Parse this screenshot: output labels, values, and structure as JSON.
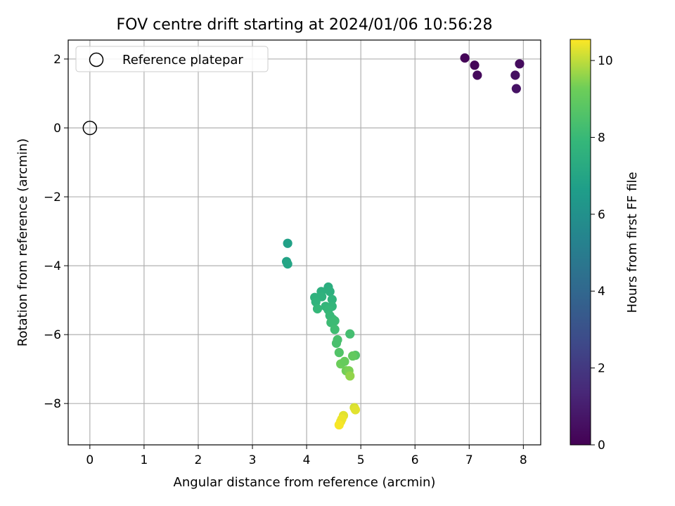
{
  "chart_data": {
    "type": "scatter",
    "title": "FOV centre drift starting at 2024/01/06 10:56:28",
    "xlabel": "Angular distance from reference (arcmin)",
    "ylabel": "Rotation from reference (arcmin)",
    "xlim": [
      -0.4,
      8.32
    ],
    "ylim": [
      -9.2,
      2.55
    ],
    "x_ticks": [
      0,
      1,
      2,
      3,
      4,
      5,
      6,
      7,
      8
    ],
    "y_ticks": [
      2,
      0,
      -2,
      -4,
      -6,
      -8
    ],
    "x_tick_labels": [
      "0",
      "1",
      "2",
      "3",
      "4",
      "5",
      "6",
      "7",
      "8"
    ],
    "y_tick_labels": [
      "2",
      "0",
      "−2",
      "−4",
      "−6",
      "−8"
    ],
    "grid": true,
    "legend": {
      "placement": "top-left",
      "entries": [
        {
          "label": "Reference platepar",
          "marker": "open-circle"
        }
      ]
    },
    "reference_point": {
      "x": 0,
      "y": 0
    },
    "colorbar": {
      "label": "Hours from first FF file",
      "range": [
        0,
        10.55
      ],
      "ticks": [
        0,
        2,
        4,
        6,
        8,
        10
      ],
      "tick_labels": [
        "0",
        "2",
        "4",
        "6",
        "8",
        "10"
      ],
      "colormap": "viridis"
    },
    "points": [
      {
        "x": 6.92,
        "y": 2.03,
        "c": 0.1
      },
      {
        "x": 7.1,
        "y": 1.82,
        "c": 0.2
      },
      {
        "x": 7.15,
        "y": 1.53,
        "c": 0.3
      },
      {
        "x": 7.93,
        "y": 1.86,
        "c": 0.4
      },
      {
        "x": 7.85,
        "y": 1.53,
        "c": 0.5
      },
      {
        "x": 7.87,
        "y": 1.14,
        "c": 0.6
      },
      {
        "x": 3.65,
        "y": -3.35,
        "c": 6.8
      },
      {
        "x": 3.63,
        "y": -3.88,
        "c": 6.9
      },
      {
        "x": 3.65,
        "y": -3.95,
        "c": 7.0
      },
      {
        "x": 4.4,
        "y": -4.62,
        "c": 7.4
      },
      {
        "x": 4.27,
        "y": -4.75,
        "c": 7.5
      },
      {
        "x": 4.43,
        "y": -4.75,
        "c": 7.5
      },
      {
        "x": 4.15,
        "y": -4.92,
        "c": 7.6
      },
      {
        "x": 4.28,
        "y": -4.9,
        "c": 7.6
      },
      {
        "x": 4.47,
        "y": -4.98,
        "c": 7.7
      },
      {
        "x": 4.17,
        "y": -5.05,
        "c": 7.7
      },
      {
        "x": 4.35,
        "y": -5.18,
        "c": 7.8
      },
      {
        "x": 4.47,
        "y": -5.18,
        "c": 7.8
      },
      {
        "x": 4.2,
        "y": -5.25,
        "c": 7.9
      },
      {
        "x": 4.4,
        "y": -5.28,
        "c": 7.9
      },
      {
        "x": 4.43,
        "y": -5.45,
        "c": 8.0
      },
      {
        "x": 4.48,
        "y": -5.55,
        "c": 8.0
      },
      {
        "x": 4.52,
        "y": -5.6,
        "c": 8.1
      },
      {
        "x": 4.45,
        "y": -5.65,
        "c": 8.1
      },
      {
        "x": 4.52,
        "y": -5.85,
        "c": 8.2
      },
      {
        "x": 4.8,
        "y": -5.98,
        "c": 8.3
      },
      {
        "x": 4.57,
        "y": -6.15,
        "c": 8.4
      },
      {
        "x": 4.55,
        "y": -6.25,
        "c": 8.4
      },
      {
        "x": 4.6,
        "y": -6.52,
        "c": 8.6
      },
      {
        "x": 4.9,
        "y": -6.6,
        "c": 8.7
      },
      {
        "x": 4.85,
        "y": -6.62,
        "c": 9.0
      },
      {
        "x": 4.63,
        "y": -6.85,
        "c": 9.2
      },
      {
        "x": 4.7,
        "y": -6.78,
        "c": 9.1
      },
      {
        "x": 4.73,
        "y": -7.05,
        "c": 9.3
      },
      {
        "x": 4.78,
        "y": -7.05,
        "c": 9.4
      },
      {
        "x": 4.8,
        "y": -7.2,
        "c": 9.6
      },
      {
        "x": 4.88,
        "y": -8.12,
        "c": 10.2
      },
      {
        "x": 4.9,
        "y": -8.18,
        "c": 10.3
      },
      {
        "x": 4.68,
        "y": -8.35,
        "c": 10.3
      },
      {
        "x": 4.65,
        "y": -8.45,
        "c": 10.4
      },
      {
        "x": 4.63,
        "y": -8.52,
        "c": 10.4
      },
      {
        "x": 4.6,
        "y": -8.62,
        "c": 10.5
      }
    ]
  }
}
